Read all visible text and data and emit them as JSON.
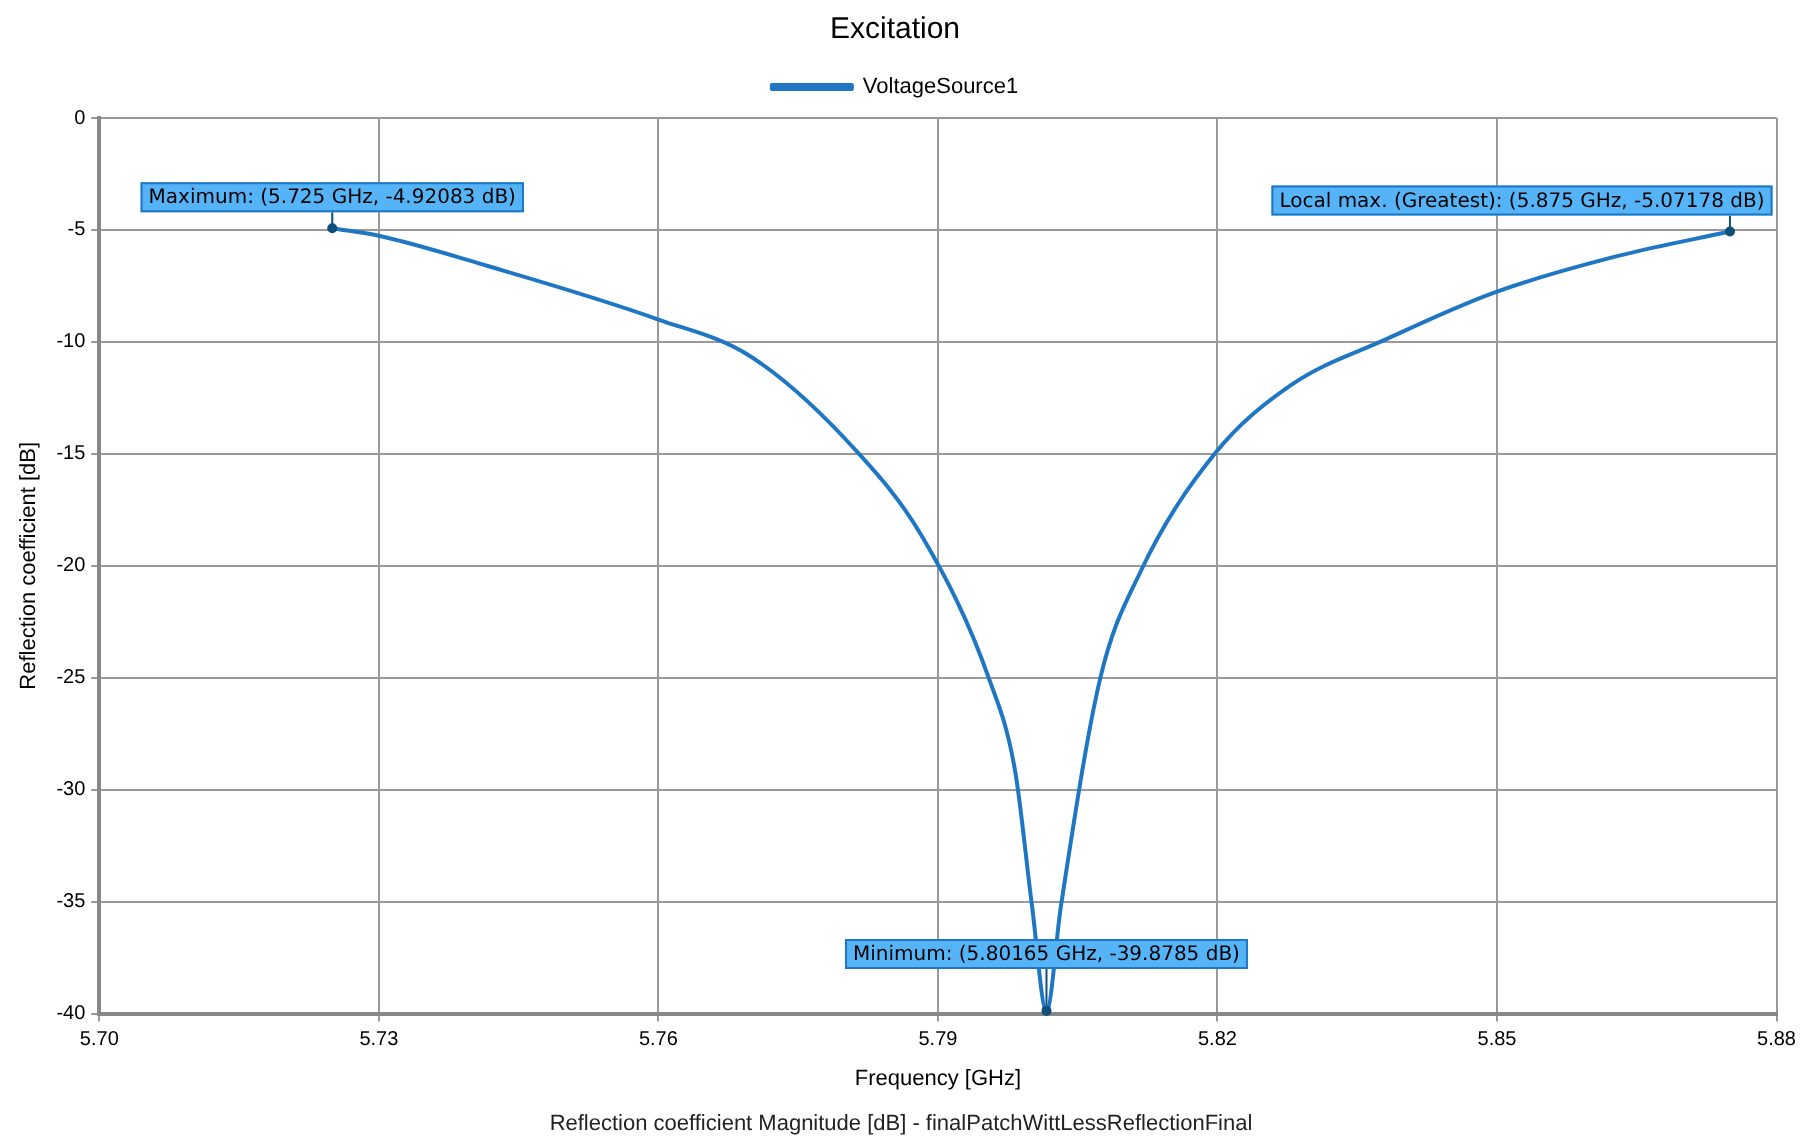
{
  "chart_data": {
    "type": "line",
    "title": "Excitation",
    "xlabel": "Frequency [GHz]",
    "ylabel": "Reflection coefficient [dB]",
    "xlim": [
      5.7,
      5.88
    ],
    "xticks": [
      {
        "value": 5.7,
        "label": "5.70"
      },
      5.73,
      5.76,
      5.79,
      5.82,
      5.85,
      5.88
    ],
    "ylim": [
      -40,
      0
    ],
    "yticks": [
      -40,
      -35,
      -30,
      -25,
      -20,
      -15,
      -10,
      -5,
      0
    ],
    "grid": true,
    "legend": "top",
    "marker": "none",
    "line_style": "solid",
    "series": [
      {
        "name": "VoltageSource1",
        "color": "#1f77c4",
        "x": [
          5.725,
          5.73,
          5.7416,
          5.76,
          5.7699,
          5.7812,
          5.7884,
          5.7955,
          5.7983,
          5.8001,
          5.80165,
          5.8032,
          5.8074,
          5.8117,
          5.8197,
          5.828,
          5.838,
          5.8497,
          5.863,
          5.875
        ],
        "values": [
          -4.92083,
          -5.26,
          -6.6,
          -9.0,
          -10.65,
          -14.85,
          -18.76,
          -25.06,
          -29.2,
          -35.2,
          -39.8785,
          -35.2,
          -25.06,
          -20.3,
          -15.0,
          -11.9,
          -9.9,
          -7.8,
          -6.16,
          -5.07178
        ]
      }
    ],
    "annotations": [
      {
        "text": "Maximum: (5.725 GHz, -4.92083 dB)",
        "x": 5.725,
        "y": -4.92083
      },
      {
        "text": "Minimum: (5.80165 GHz, -39.8785 dB)",
        "x": 5.80165,
        "y": -39.8785
      },
      {
        "text": "Local max. (Greatest): (5.875 GHz, -5.07178 dB)",
        "x": 5.875,
        "y": -5.07178
      },
      "Reflection coefficient Magnitude [dB] - finalPatchWittLessReflectionFinal"
    ]
  }
}
